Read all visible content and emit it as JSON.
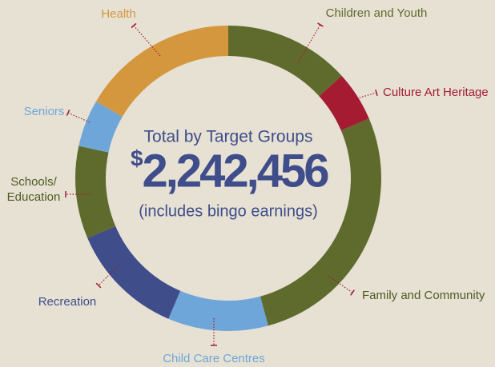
{
  "chart_data": {
    "type": "donut",
    "title": "Total by Target Groups",
    "total_currency": "$",
    "total_amount": "2,242,456",
    "subtitle": "(includes bingo earnings)",
    "categories": [
      "Children and Youth",
      "Culture Art Heritage",
      "Family and Community",
      "Child Care Centres",
      "Recreation",
      "Schools/ Education",
      "Seniors",
      "Health"
    ],
    "values": [
      13.3,
      5.3,
      27.2,
      10.6,
      12.2,
      9.8,
      5.0,
      16.6
    ],
    "colors": [
      "#5f6a2d",
      "#a51b32",
      "#5f6a2d",
      "#6ea6da",
      "#3f4d8b",
      "#5f6a2d",
      "#6ea6da",
      "#d4973d"
    ],
    "label_colors": [
      "#5f6a2d",
      "#a51b32",
      "#4e5a22",
      "#6ea6da",
      "#3f4d8b",
      "#4e5a22",
      "#6ea6da",
      "#d4973d"
    ]
  }
}
